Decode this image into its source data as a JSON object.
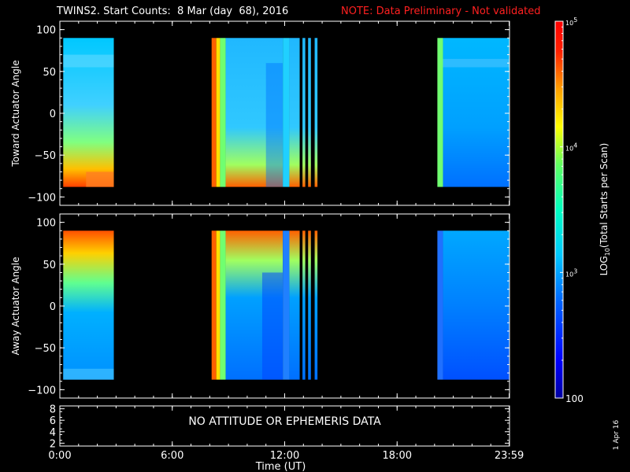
{
  "header": {
    "title": "TWINS2. Start Counts:  8 Mar (day  68), 2016",
    "note": "NOTE: Data Preliminary - Not validated"
  },
  "footer": {
    "datestamp": "1 Apr 16"
  },
  "colors": {
    "background": "#000000",
    "axis": "#ffffff",
    "note": "#ff2020"
  },
  "chart_data": [
    {
      "type": "heatmap",
      "id": "toward",
      "ylabel": "Toward Actuator Angle",
      "ylim": [
        -110,
        110
      ],
      "yticks": [
        100,
        50,
        0,
        -50,
        -100
      ],
      "ytick_labels": [
        "100",
        "50",
        "0",
        "−50",
        "−100"
      ],
      "xlim": [
        0,
        24
      ],
      "data_extent_y": [
        -88,
        90
      ]
    },
    {
      "type": "heatmap",
      "id": "away",
      "ylabel": "Away Actuator Angle",
      "ylim": [
        -110,
        110
      ],
      "yticks": [
        100,
        50,
        0,
        -50,
        -100
      ],
      "ytick_labels": [
        "100",
        "50",
        "0",
        "−50",
        "−100"
      ],
      "xlim": [
        0,
        24
      ],
      "data_extent_y": [
        -88,
        90
      ]
    },
    {
      "type": "line",
      "id": "ephemeris",
      "ylim": [
        1.5,
        8.5
      ],
      "yticks": [
        8,
        6,
        4,
        2
      ],
      "ytick_labels": [
        "8",
        "6",
        "4",
        "2"
      ],
      "message": "NO ATTITUDE OR EPHEMERIS DATA",
      "xlim": [
        0,
        24
      ],
      "xlabel": "Time (UT)",
      "xticks": [
        0,
        6,
        12,
        18,
        23.983
      ],
      "xtick_labels": [
        "0:00",
        "6:00",
        "12:00",
        "18:00",
        "23:59"
      ]
    }
  ],
  "colorbar": {
    "label": "LOG10(Total Starts per Scan)",
    "scale": "log",
    "range": [
      100,
      100000
    ],
    "ticks": [
      100,
      1000,
      10000,
      100000
    ],
    "tick_labels": [
      "100",
      "10^3",
      "10^4",
      "10^5"
    ],
    "stops": [
      "#0000a0",
      "#0000ff",
      "#0060ff",
      "#00c8ff",
      "#00ffc0",
      "#60ff60",
      "#ffff00",
      "#ffa000",
      "#ff2000",
      "#ff0000"
    ]
  }
}
